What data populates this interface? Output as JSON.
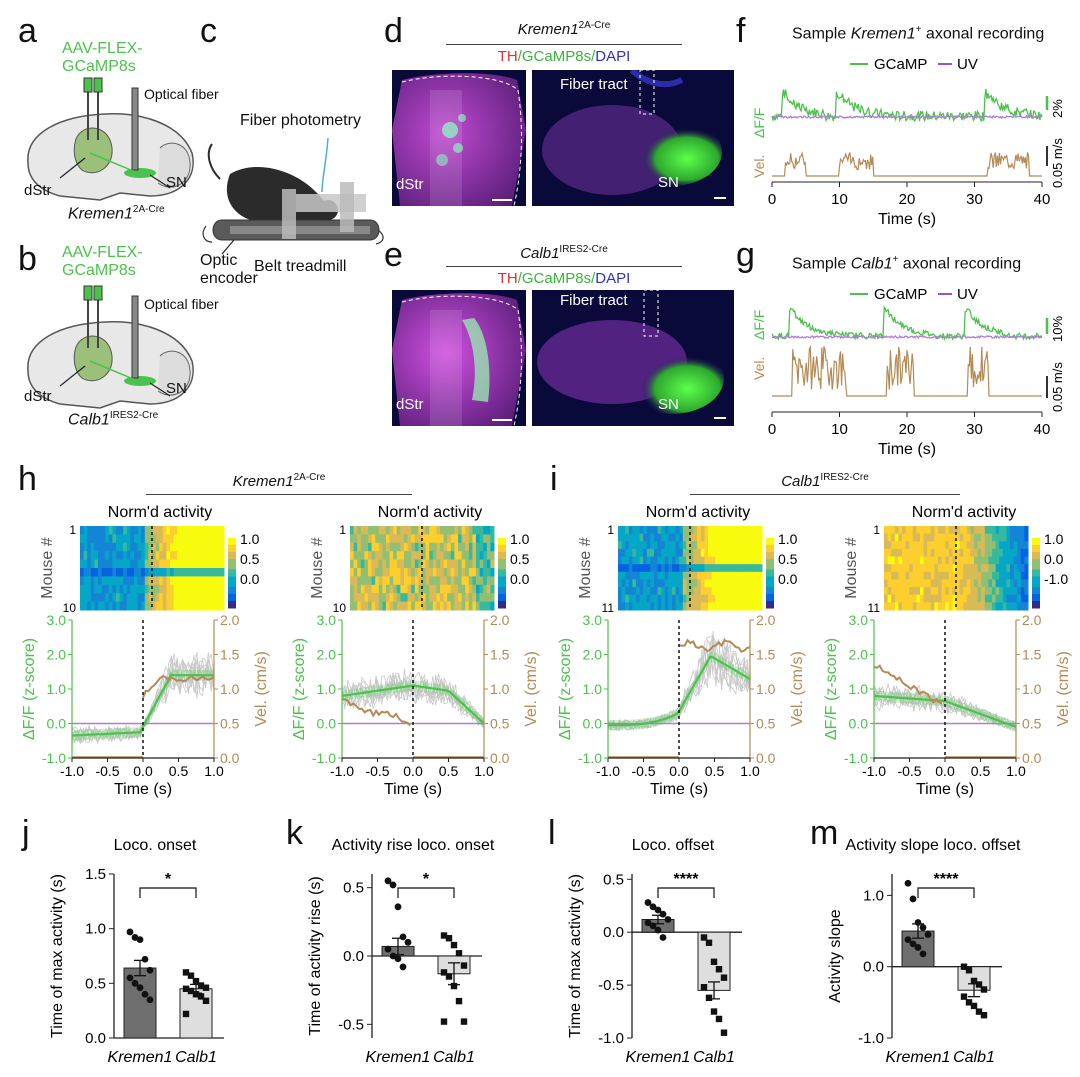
{
  "panels": {
    "a": "a",
    "b": "b",
    "c": "c",
    "d": "d",
    "e": "e",
    "f": "f",
    "g": "g",
    "h": "h",
    "i": "i",
    "j": "j",
    "k": "k",
    "l": "l",
    "m": "m"
  },
  "schematic_a": {
    "virus_line1": "AAV-FLEX-",
    "virus_line2": "GCaMP8s",
    "fiber": "Optical fiber",
    "dstr": "dStr",
    "sn": "SN",
    "genotype": "Kremen1",
    "genotype_sup": "2A-Cre"
  },
  "schematic_b": {
    "virus_line1": "AAV-FLEX-",
    "virus_line2": "GCaMP8s",
    "fiber": "Optical fiber",
    "dstr": "dStr",
    "sn": "SN",
    "genotype": "Calb1",
    "genotype_sup": "IRES2-Cre"
  },
  "schematic_c": {
    "photometry": "Fiber photometry",
    "encoder_line1": "Optic",
    "encoder_line2": "encoder",
    "treadmill": "Belt treadmill"
  },
  "micro_d": {
    "header": "Kremen1",
    "header_sup": "2A-Cre",
    "stain_th": "TH",
    "stain_gcamp": "/GCaMP8s/",
    "stain_dapi": "DAPI",
    "fiber_tract": "Fiber tract",
    "dstr": "dStr",
    "sn": "SN"
  },
  "micro_e": {
    "header": "Calb1",
    "header_sup": "IRES2-Cre",
    "stain_th": "TH",
    "stain_gcamp": "/GCaMP8s/",
    "stain_dapi": "DAPI",
    "fiber_tract": "Fiber tract",
    "dstr": "dStr",
    "sn": "SN"
  },
  "trace_f": {
    "title_pre": "Sample ",
    "title_gene": "Kremen1",
    "title_sup": "+",
    "title_post": " axonal recording",
    "legend_gcamp": "GCaMP",
    "legend_uv": "UV",
    "ylabel_top": "ΔF/F",
    "ylabel_bottom": "Vel.",
    "scale_top": "2%",
    "scale_bottom": "0.05 m/s",
    "xlabel": "Time (s)",
    "xticks": [
      "0",
      "10",
      "20",
      "30",
      "40"
    ]
  },
  "trace_g": {
    "title_pre": "Sample ",
    "title_gene": "Calb1",
    "title_sup": "+",
    "title_post": " axonal recording",
    "legend_gcamp": "GCaMP",
    "legend_uv": "UV",
    "ylabel_top": "ΔF/F",
    "ylabel_bottom": "Vel.",
    "scale_top": "10%",
    "scale_bottom": "0.05 m/s",
    "xlabel": "Time (s)",
    "xticks": [
      "0",
      "10",
      "20",
      "30",
      "40"
    ]
  },
  "group_h": {
    "gene": "Kremen1",
    "sup": "2A-Cre"
  },
  "group_i": {
    "gene": "Calb1",
    "sup": "IRES2-Cre"
  },
  "heat": [
    {
      "title": "Norm'd activity",
      "ylabel": "Mouse #",
      "row_first": "1",
      "row_last": "10",
      "cbar": [
        "1.0",
        "0.5",
        "0.0"
      ]
    },
    {
      "title": "Norm'd activity",
      "ylabel": "Mouse #",
      "row_first": "1",
      "row_last": "10",
      "cbar": [
        "1.0",
        "0.5",
        "0.0"
      ]
    },
    {
      "title": "Norm'd activity",
      "ylabel": "Mouse #",
      "row_first": "1",
      "row_last": "11",
      "cbar": [
        "1.0",
        "0.5",
        "0.0"
      ]
    },
    {
      "title": "Norm'd activity",
      "ylabel": "Mouse #",
      "row_first": "1",
      "row_last": "11",
      "cbar": [
        "1.0",
        "0.0",
        "-1.0"
      ]
    }
  ],
  "avg_common": {
    "ylabel_left": "ΔF/F (z-score)",
    "ylabel_right": "Vel. (cm/s)",
    "xlabel": "Time (s)",
    "yticks_left": [
      "3.0",
      "2.0",
      "1.0",
      "0.0",
      "-1.0"
    ],
    "yticks_right": [
      "2.0",
      "1.5",
      "1.0",
      "0.5",
      "0.0"
    ],
    "xticks": [
      "-1.0",
      "-0.5",
      "0.0",
      "0.5",
      "1.0"
    ]
  },
  "chart_data": [
    {
      "panel": "j",
      "type": "bar",
      "title": "Loco. onset",
      "ylabel": "Time of max activity (s)",
      "categories": [
        "Kremen1",
        "Calb1"
      ],
      "values": [
        0.64,
        0.45
      ],
      "sem": [
        0.07,
        0.04
      ],
      "ylim": [
        0,
        1.5
      ],
      "yticks": [
        "0.0",
        "0.5",
        "1.0",
        "1.5"
      ],
      "significance": "*",
      "points": [
        [
          0.97,
          0.92,
          0.9,
          0.72,
          0.62,
          0.55,
          0.5,
          0.46,
          0.4,
          0.35
        ],
        [
          0.6,
          0.57,
          0.52,
          0.48,
          0.46,
          0.45,
          0.43,
          0.4,
          0.38,
          0.34,
          0.22
        ]
      ]
    },
    {
      "panel": "k",
      "type": "bar",
      "title": "Activity rise loco. onset",
      "ylabel": "Time of activity rise (s)",
      "categories": [
        "Kremen1",
        "Calb1"
      ],
      "values": [
        0.07,
        -0.13
      ],
      "sem": [
        0.06,
        0.08
      ],
      "ylim": [
        -0.6,
        0.6
      ],
      "yticks": [
        "0.5",
        "0.0",
        "-0.5"
      ],
      "significance": "*",
      "points": [
        [
          0.55,
          0.52,
          0.36,
          0.14,
          0.1,
          0.05,
          0.0,
          -0.02,
          -0.08
        ],
        [
          0.15,
          0.13,
          0.08,
          0.02,
          -0.07,
          -0.12,
          -0.15,
          -0.22,
          -0.33,
          -0.48,
          -0.48
        ]
      ]
    },
    {
      "panel": "l",
      "type": "bar",
      "title": "Loco. offset",
      "ylabel": "Time of max activity (s)",
      "categories": [
        "Kremen1",
        "Calb1"
      ],
      "values": [
        0.12,
        -0.55
      ],
      "sem": [
        0.04,
        0.08
      ],
      "ylim": [
        -1.0,
        0.55
      ],
      "yticks": [
        "0.5",
        "0.0",
        "-0.5",
        "-1.0"
      ],
      "significance": "****",
      "points": [
        [
          0.28,
          0.24,
          0.21,
          0.17,
          0.12,
          0.09,
          0.06,
          0.02,
          -0.05
        ],
        [
          -0.05,
          -0.1,
          -0.28,
          -0.35,
          -0.43,
          -0.52,
          -0.62,
          -0.75,
          -0.82,
          -0.95
        ]
      ]
    },
    {
      "panel": "m",
      "type": "bar",
      "title": "Activity slope loco. offset",
      "ylabel": "Activity slope",
      "categories": [
        "Kremen1",
        "Calb1"
      ],
      "values": [
        0.5,
        -0.33
      ],
      "sem": [
        0.1,
        0.09
      ],
      "ylim": [
        -1.0,
        1.3
      ],
      "yticks": [
        "1.0",
        "0.0",
        "-1.0"
      ],
      "significance": "****",
      "points": [
        [
          1.17,
          0.95,
          0.62,
          0.55,
          0.45,
          0.38,
          0.32,
          0.27,
          0.18
        ],
        [
          0.0,
          -0.05,
          -0.2,
          -0.25,
          -0.32,
          -0.42,
          -0.5,
          -0.55,
          -0.63,
          -0.68
        ]
      ]
    }
  ],
  "colors": {
    "green": "#4cc24c",
    "tan": "#b58a55",
    "purple": "#b07cd6",
    "bar_dark": "#6e6e6e",
    "bar_light": "#dedede"
  }
}
